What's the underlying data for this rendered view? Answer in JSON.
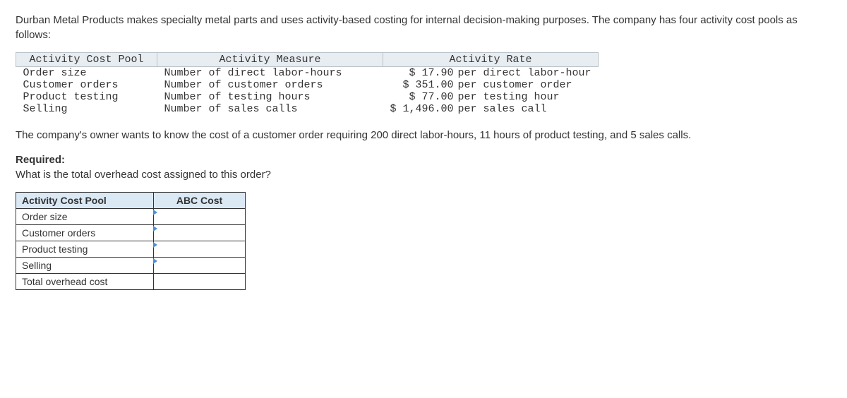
{
  "intro": "Durban Metal Products makes specialty metal parts and uses activity-based costing for internal decision-making purposes. The company has four activity cost pools as follows:",
  "rates_table": {
    "headers": [
      "Activity Cost Pool",
      "Activity Measure",
      "Activity Rate"
    ],
    "rows": [
      {
        "pool": "Order size",
        "measure": "Number of direct labor-hours",
        "amount": "$ 17.90",
        "unit": "per direct labor-hour"
      },
      {
        "pool": "Customer orders",
        "measure": "Number of customer orders",
        "amount": "$ 351.00",
        "unit": "per customer order"
      },
      {
        "pool": "Product testing",
        "measure": "Number of testing hours",
        "amount": "$ 77.00",
        "unit": "per testing hour"
      },
      {
        "pool": "Selling",
        "measure": "Number of sales calls",
        "amount": "$ 1,496.00",
        "unit": "per sales call"
      }
    ]
  },
  "mid": "The company's owner wants to know the cost of a customer order requiring 200 direct labor-hours, 11 hours of product testing, and 5 sales calls.",
  "required_label": "Required:",
  "required_question": "What is the total overhead cost assigned to this order?",
  "abc_table": {
    "headers": {
      "pool": "Activity Cost Pool",
      "cost": "ABC Cost"
    },
    "rows": [
      {
        "label": "Order size",
        "value": ""
      },
      {
        "label": "Customer orders",
        "value": ""
      },
      {
        "label": "Product testing",
        "value": ""
      },
      {
        "label": "Selling",
        "value": ""
      }
    ],
    "total_label": "Total overhead cost",
    "total_value": ""
  }
}
